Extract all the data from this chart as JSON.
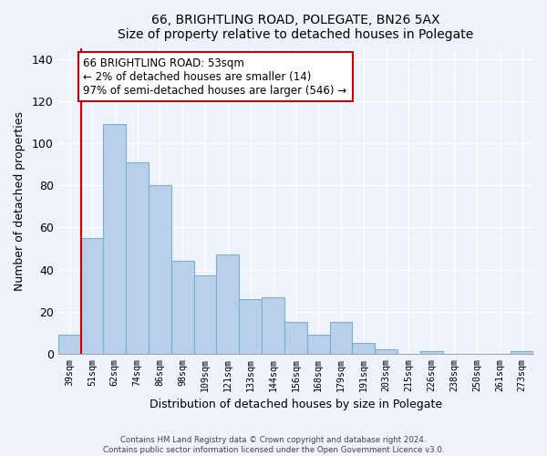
{
  "title1": "66, BRIGHTLING ROAD, POLEGATE, BN26 5AX",
  "title2": "Size of property relative to detached houses in Polegate",
  "xlabel": "Distribution of detached houses by size in Polegate",
  "ylabel": "Number of detached properties",
  "bar_labels": [
    "39sqm",
    "51sqm",
    "62sqm",
    "74sqm",
    "86sqm",
    "98sqm",
    "109sqm",
    "121sqm",
    "133sqm",
    "144sqm",
    "156sqm",
    "168sqm",
    "179sqm",
    "191sqm",
    "203sqm",
    "215sqm",
    "226sqm",
    "238sqm",
    "250sqm",
    "261sqm",
    "273sqm"
  ],
  "bar_heights": [
    9,
    55,
    109,
    91,
    80,
    44,
    37,
    47,
    26,
    27,
    15,
    9,
    15,
    5,
    2,
    0,
    1,
    0,
    0,
    0,
    1
  ],
  "bar_color": "#b8d0ea",
  "bar_edge_color": "#7aafd4",
  "vline_color": "#cc0000",
  "annotation_line1": "66 BRIGHTLING ROAD: 53sqm",
  "annotation_line2": "← 2% of detached houses are smaller (14)",
  "annotation_line3": "97% of semi-detached houses are larger (546) →",
  "annotation_box_color": "#ffffff",
  "annotation_border_color": "#cc0000",
  "ylim": [
    0,
    145
  ],
  "yticks": [
    0,
    20,
    40,
    60,
    80,
    100,
    120,
    140
  ],
  "footer1": "Contains HM Land Registry data © Crown copyright and database right 2024.",
  "footer2": "Contains public sector information licensed under the Open Government Licence v3.0.",
  "bg_color": "#eef2fb",
  "grid_color": "#ffffff",
  "title_fontsize": 10,
  "subtitle_fontsize": 9
}
